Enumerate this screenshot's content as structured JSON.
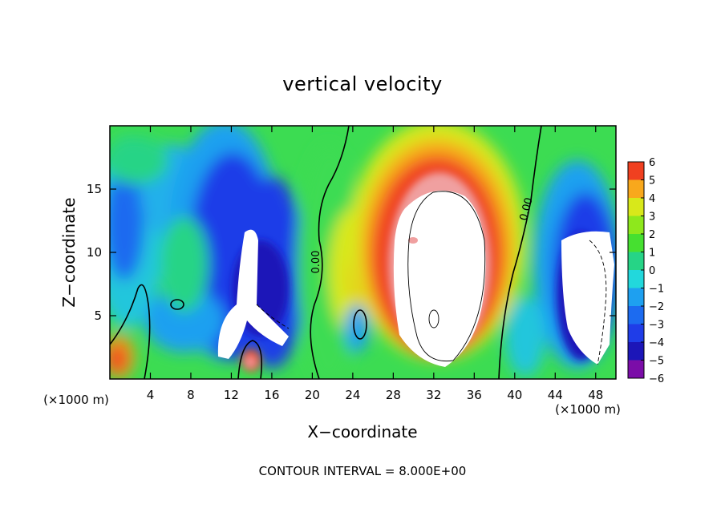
{
  "chart_data": {
    "type": "heatmap",
    "title": "vertical velocity",
    "xlabel": "X−coordinate",
    "ylabel": "Z−coordinate",
    "x_unit_label": "(×1000 m)",
    "z_unit_label": "(×1000 m)",
    "x_ticks": [
      4,
      8,
      12,
      16,
      20,
      24,
      28,
      32,
      36,
      40,
      44,
      48
    ],
    "x_tick_labels": [
      "4",
      "8",
      "12",
      "16",
      "20",
      "24",
      "28",
      "32",
      "36",
      "40",
      "44",
      "48"
    ],
    "z_ticks": [
      5,
      10,
      15
    ],
    "z_tick_labels": [
      "5",
      "10",
      "15"
    ],
    "xlim": [
      0,
      50
    ],
    "zlim": [
      0,
      20
    ],
    "colorbar": {
      "levels": [
        -6,
        -5,
        -4,
        -3,
        -2,
        -1,
        0,
        1,
        2,
        3,
        4,
        5,
        6
      ],
      "labels": [
        "−6",
        "−5",
        "−4",
        "−3",
        "−2",
        "−1",
        "0",
        "1",
        "2",
        "3",
        "4",
        "5",
        "6"
      ],
      "colors": [
        "#7b0da8",
        "#1c16b8",
        "#1f3de8",
        "#1c6bf0",
        "#1ea0f0",
        "#22d8dc",
        "#26d486",
        "#46e030",
        "#8ee81c",
        "#d8e81a",
        "#f8a81c",
        "#f04020",
        "#f0a0a0"
      ]
    },
    "contour_labels": [
      "0.00",
      "0.00"
    ],
    "contour_interval_text": "CONTOUR INTERVAL = 8.000E+00",
    "features": [
      {
        "kind": "updraft-core",
        "x_range": [
          27,
          38
        ],
        "z_range": [
          1,
          15
        ],
        "w_min": 6
      },
      {
        "kind": "downdraft-core",
        "x_range": [
          10.5,
          15
        ],
        "z_range": [
          2.5,
          12
        ],
        "w_max": -6
      },
      {
        "kind": "downdraft-core",
        "x_range": [
          44,
          50
        ],
        "z_range": [
          1.5,
          12
        ],
        "w_max": -6
      }
    ]
  }
}
